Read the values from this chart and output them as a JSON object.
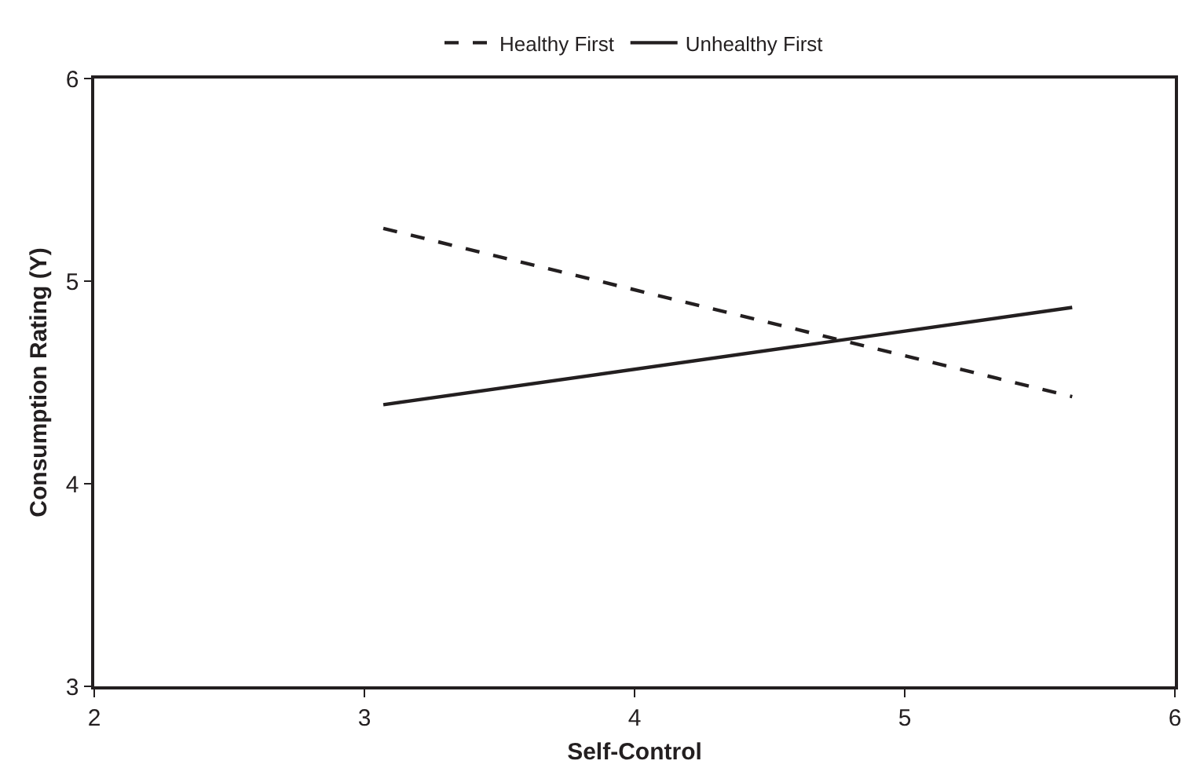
{
  "chart_data": {
    "type": "line",
    "xlabel": "Self-Control",
    "ylabel": "Consumption Rating (Y)",
    "x": [
      3.07,
      5.62
    ],
    "series": [
      {
        "name": "Healthy First",
        "color": "#231f20",
        "values": [
          5.26,
          4.43
        ],
        "line_style": "dashed"
      },
      {
        "name": "Unhealthy First",
        "color": "#231f20",
        "values": [
          4.39,
          4.87
        ],
        "line_style": "solid"
      }
    ],
    "xlim": [
      2,
      6
    ],
    "xticks": [
      2,
      3,
      4,
      5,
      6
    ],
    "ylim": [
      3,
      6
    ],
    "yticks": [
      3,
      4,
      5,
      6
    ],
    "legend": "top",
    "marker": "none"
  }
}
